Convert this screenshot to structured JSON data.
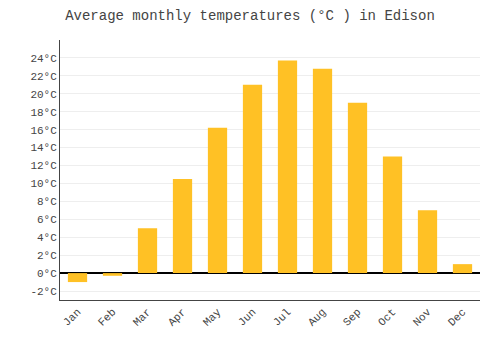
{
  "chart_data": {
    "type": "bar",
    "title": "Average monthly temperatures (°C ) in Edison",
    "categories": [
      "Jan",
      "Feb",
      "Mar",
      "Apr",
      "May",
      "Jun",
      "Jul",
      "Aug",
      "Sep",
      "Oct",
      "Nov",
      "Dec"
    ],
    "values": [
      -1.0,
      -0.3,
      5.0,
      10.5,
      16.2,
      21.0,
      23.7,
      22.8,
      19.0,
      13.0,
      7.0,
      1.0
    ],
    "color": "#FFC125",
    "ylim": [
      -3,
      26
    ],
    "yticks": [
      {
        "value": -2,
        "label": "-2°C"
      },
      {
        "value": 0,
        "label": "0°C"
      },
      {
        "value": 2,
        "label": "2°C"
      },
      {
        "value": 4,
        "label": "4°C"
      },
      {
        "value": 6,
        "label": "6°C"
      },
      {
        "value": 8,
        "label": "8°C"
      },
      {
        "value": 10,
        "label": "10°C"
      },
      {
        "value": 12,
        "label": "12°C"
      },
      {
        "value": 14,
        "label": "14°C"
      },
      {
        "value": 16,
        "label": "16°C"
      },
      {
        "value": 18,
        "label": "18°C"
      },
      {
        "value": 20,
        "label": "20°C"
      },
      {
        "value": 22,
        "label": "22°C"
      },
      {
        "value": 24,
        "label": "24°C"
      }
    ],
    "grid": true
  }
}
